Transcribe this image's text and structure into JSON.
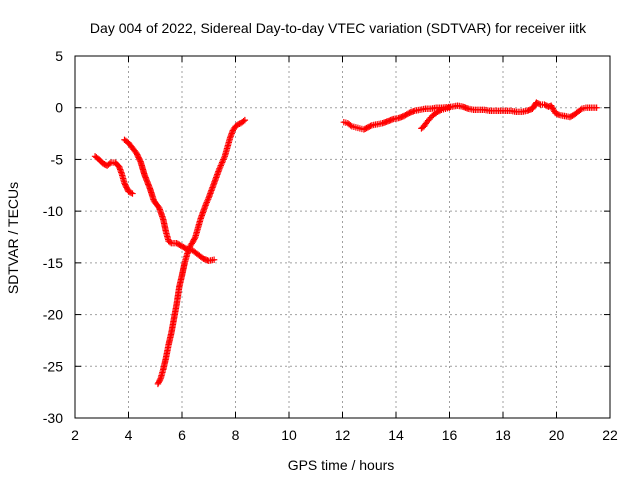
{
  "chart_data": {
    "type": "scatter",
    "title": "Day 004 of 2022, Sidereal Day-to-day VTEC variation (SDTVAR) for receiver iitk",
    "xlabel": "GPS time / hours",
    "ylabel": "SDTVAR / TECUs",
    "xlim": [
      2,
      22
    ],
    "ylim": [
      -30,
      5
    ],
    "xticks": [
      "2",
      "4",
      "6",
      "8",
      "10",
      "12",
      "14",
      "16",
      "18",
      "20",
      "22"
    ],
    "yticks": [
      "5",
      "0",
      "-5",
      "-10",
      "-15",
      "-20",
      "-25",
      "-30"
    ],
    "grid": true,
    "marker": "plus",
    "color": "#ff0000",
    "series": [
      {
        "points": [
          [
            2.75,
            -4.7
          ],
          [
            2.9,
            -5.0
          ],
          [
            3.05,
            -5.4
          ],
          [
            3.2,
            -5.6
          ],
          [
            3.35,
            -5.3
          ],
          [
            3.5,
            -5.3
          ],
          [
            3.65,
            -5.7
          ],
          [
            3.75,
            -6.4
          ],
          [
            3.85,
            -7.3
          ],
          [
            4.0,
            -8.1
          ],
          [
            4.15,
            -8.3
          ]
        ]
      },
      {
        "points": [
          [
            3.85,
            -3.1
          ],
          [
            4.0,
            -3.4
          ],
          [
            4.15,
            -3.9
          ],
          [
            4.3,
            -4.4
          ],
          [
            4.45,
            -5.2
          ],
          [
            4.6,
            -6.5
          ],
          [
            4.8,
            -7.8
          ],
          [
            4.95,
            -9.0
          ],
          [
            5.15,
            -9.7
          ],
          [
            5.3,
            -10.8
          ],
          [
            5.4,
            -12.0
          ],
          [
            5.5,
            -12.9
          ],
          [
            5.6,
            -13.1
          ],
          [
            5.8,
            -13.1
          ],
          [
            6.0,
            -13.4
          ],
          [
            6.2,
            -13.7
          ],
          [
            6.4,
            -13.8
          ],
          [
            6.6,
            -14.2
          ],
          [
            6.8,
            -14.6
          ],
          [
            7.0,
            -14.8
          ],
          [
            7.2,
            -14.7
          ]
        ]
      },
      {
        "points": [
          [
            5.1,
            -26.7
          ],
          [
            5.2,
            -26.2
          ],
          [
            5.3,
            -25.3
          ],
          [
            5.4,
            -24.2
          ],
          [
            5.5,
            -22.9
          ],
          [
            5.6,
            -21.8
          ],
          [
            5.7,
            -20.4
          ],
          [
            5.8,
            -19.0
          ],
          [
            5.9,
            -17.3
          ],
          [
            6.0,
            -16.2
          ],
          [
            6.1,
            -15.0
          ],
          [
            6.2,
            -14.1
          ],
          [
            6.3,
            -13.4
          ],
          [
            6.4,
            -13.0
          ],
          [
            6.5,
            -12.5
          ],
          [
            6.6,
            -11.6
          ],
          [
            6.7,
            -10.7
          ],
          [
            6.8,
            -10.0
          ],
          [
            6.9,
            -9.3
          ],
          [
            7.0,
            -8.7
          ],
          [
            7.1,
            -8.0
          ],
          [
            7.2,
            -7.3
          ],
          [
            7.3,
            -6.6
          ],
          [
            7.4,
            -5.9
          ],
          [
            7.5,
            -5.3
          ],
          [
            7.6,
            -4.7
          ],
          [
            7.7,
            -3.8
          ],
          [
            7.8,
            -2.9
          ],
          [
            7.9,
            -2.2
          ],
          [
            8.0,
            -1.8
          ],
          [
            8.1,
            -1.6
          ],
          [
            8.2,
            -1.5
          ],
          [
            8.35,
            -1.2
          ]
        ]
      },
      {
        "points": [
          [
            12.05,
            -1.4
          ],
          [
            12.2,
            -1.5
          ],
          [
            12.35,
            -1.8
          ],
          [
            12.5,
            -1.9
          ],
          [
            12.65,
            -2.0
          ],
          [
            12.8,
            -2.1
          ],
          [
            12.95,
            -1.9
          ],
          [
            13.1,
            -1.7
          ],
          [
            13.3,
            -1.6
          ],
          [
            13.5,
            -1.5
          ],
          [
            13.7,
            -1.3
          ],
          [
            13.9,
            -1.1
          ],
          [
            14.1,
            -1.0
          ],
          [
            14.3,
            -0.8
          ],
          [
            14.5,
            -0.5
          ],
          [
            14.7,
            -0.3
          ],
          [
            14.9,
            -0.2
          ],
          [
            15.1,
            -0.1
          ],
          [
            15.3,
            -0.1
          ],
          [
            15.5,
            0.0
          ],
          [
            15.7,
            0.0
          ],
          [
            15.9,
            0.05
          ],
          [
            16.1,
            0.1
          ],
          [
            16.3,
            0.2
          ],
          [
            16.5,
            0.1
          ],
          [
            16.7,
            -0.1
          ],
          [
            16.9,
            -0.2
          ],
          [
            17.1,
            -0.2
          ],
          [
            17.3,
            -0.2
          ],
          [
            17.5,
            -0.3
          ],
          [
            17.7,
            -0.3
          ],
          [
            17.9,
            -0.3
          ],
          [
            18.1,
            -0.3
          ],
          [
            18.3,
            -0.3
          ],
          [
            18.5,
            -0.4
          ],
          [
            18.7,
            -0.4
          ],
          [
            18.9,
            -0.3
          ],
          [
            19.1,
            -0.1
          ],
          [
            19.25,
            0.5
          ],
          [
            19.4,
            0.3
          ],
          [
            19.55,
            0.3
          ],
          [
            19.7,
            0.1
          ],
          [
            19.8,
            0.2
          ],
          [
            19.95,
            -0.5
          ],
          [
            20.1,
            -0.7
          ],
          [
            20.3,
            -0.8
          ],
          [
            20.5,
            -0.9
          ],
          [
            20.65,
            -0.7
          ],
          [
            20.8,
            -0.4
          ],
          [
            20.95,
            -0.1
          ],
          [
            21.1,
            0.0
          ],
          [
            21.3,
            0.0
          ],
          [
            21.5,
            0.0
          ]
        ]
      },
      {
        "points": [
          [
            14.95,
            -2.0
          ],
          [
            15.05,
            -1.8
          ],
          [
            15.15,
            -1.4
          ],
          [
            15.25,
            -1.1
          ],
          [
            15.35,
            -0.8
          ],
          [
            15.45,
            -0.6
          ],
          [
            15.55,
            -0.4
          ],
          [
            15.7,
            -0.2
          ],
          [
            15.85,
            -0.1
          ],
          [
            16.0,
            0.0
          ]
        ]
      }
    ]
  }
}
